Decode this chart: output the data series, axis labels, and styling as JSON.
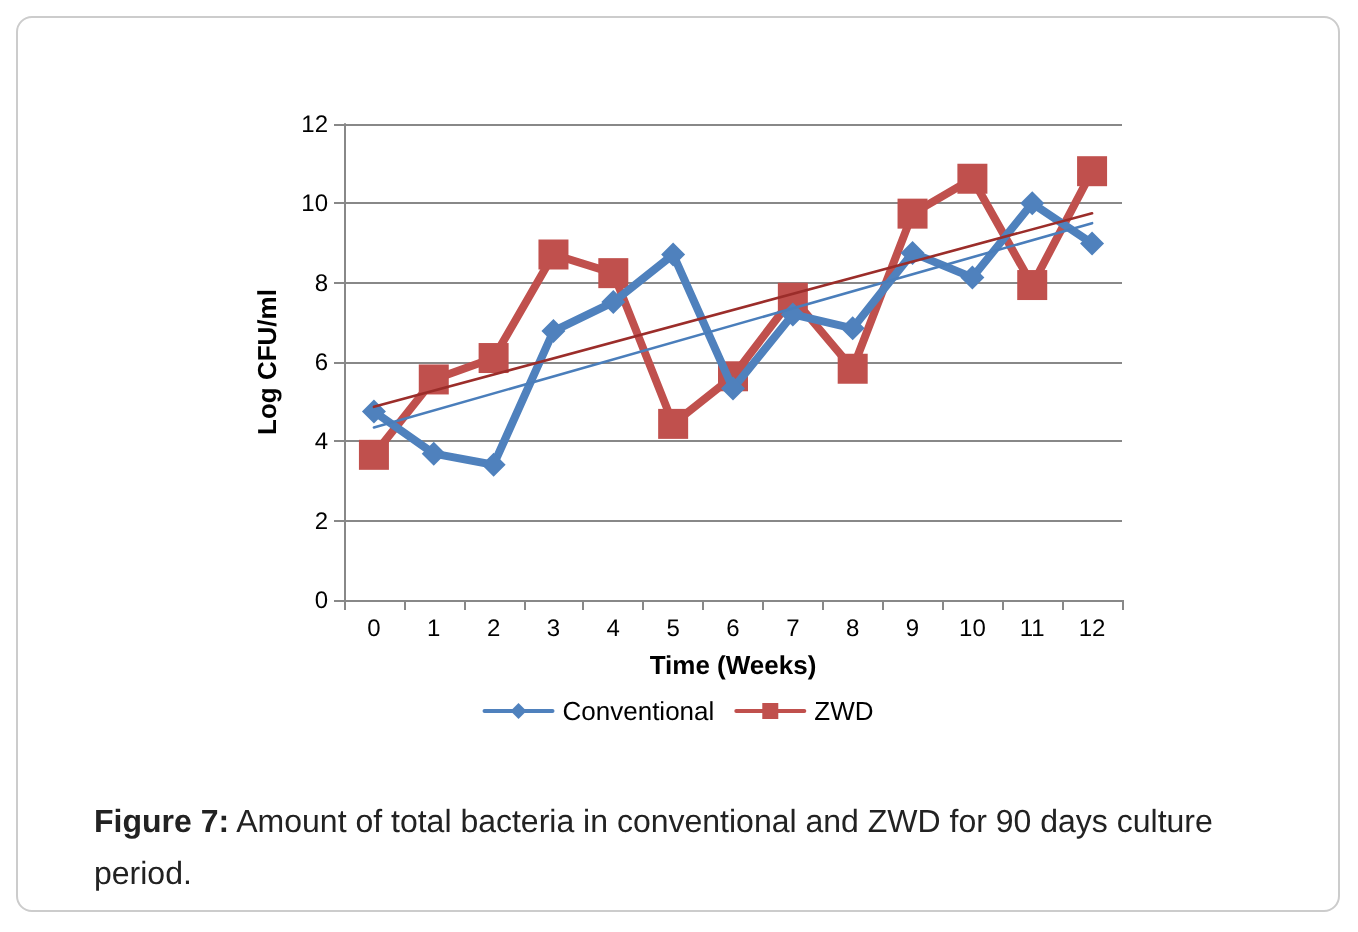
{
  "chart_data": {
    "type": "line",
    "xlabel": "Time (Weeks)",
    "ylabel": "Log CFU/ml",
    "categories": [
      "0",
      "1",
      "2",
      "3",
      "4",
      "5",
      "6",
      "7",
      "8",
      "9",
      "10",
      "11",
      "12"
    ],
    "series": [
      {
        "name": "Conventional",
        "color": "#4f81bd",
        "marker": "diamond",
        "values": [
          4.75,
          3.69,
          3.41,
          6.78,
          7.51,
          8.71,
          5.33,
          7.2,
          6.85,
          8.75,
          8.13,
          10.0,
          8.99
        ]
      },
      {
        "name": "ZWD",
        "color": "#c0504d",
        "marker": "square",
        "values": [
          3.66,
          5.56,
          6.1,
          8.71,
          8.24,
          4.44,
          5.64,
          7.62,
          5.83,
          9.74,
          10.62,
          7.94,
          10.81
        ]
      },
      {
        "type": "line",
        "color": "#4a7ebb",
        "marker": "none",
        "x": [
          "0",
          "12"
        ],
        "values": [
          4.35,
          9.5
        ]
      },
      {
        "type": "line",
        "color": "#9b2d2a",
        "marker": "none",
        "x": [
          "0",
          "12"
        ],
        "values": [
          4.87,
          9.75
        ]
      }
    ],
    "ylim": [
      0,
      12
    ],
    "yticks": [
      0,
      2,
      4,
      6,
      8,
      10,
      12
    ],
    "grid": "y",
    "legend": "bottom",
    "line_style": "solid",
    "annotations": [
      "Figure 7: Amount of total bacteria in conventional and ZWD for 90 days culture period."
    ]
  }
}
